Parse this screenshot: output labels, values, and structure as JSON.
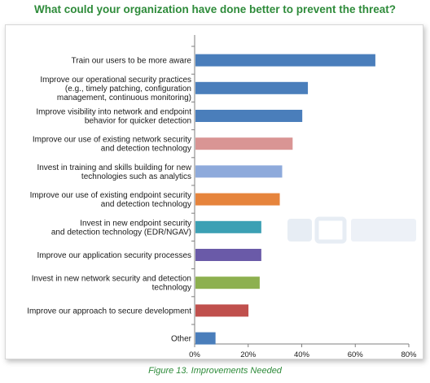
{
  "title": "What could your organization have done better to prevent the threat?",
  "caption": "Figure 13. Improvements Needed",
  "chart_data": {
    "type": "bar",
    "orientation": "horizontal",
    "categories": [
      [
        "Train our users to be more aware"
      ],
      [
        "Improve our operational security practices",
        "(e.g., timely patching, configuration",
        "management, continuous monitoring)"
      ],
      [
        "Improve visibility into network and endpoint",
        "behavior for quicker detection"
      ],
      [
        "Improve our use of existing network security",
        "and detection technology"
      ],
      [
        "Invest in training and skills building for new",
        "technologies such as analytics"
      ],
      [
        "Improve our use of existing endpoint security",
        "and detection technology"
      ],
      [
        "Invest in new endpoint security",
        "and detection technology (EDR/NGAV)"
      ],
      [
        "Improve our application security processes"
      ],
      [
        "Invest in new network security and detection",
        "technology"
      ],
      [
        "Improve our approach to secure development"
      ],
      [
        "Other"
      ]
    ],
    "values": [
      67.5,
      42.3,
      40.2,
      36.6,
      32.7,
      31.8,
      24.9,
      24.9,
      24.3,
      20.1,
      7.8
    ],
    "colors": [
      "#4a7ebb",
      "#4a7ebb",
      "#4a7ebb",
      "#d99594",
      "#8eaadb",
      "#e6843c",
      "#3ba0b4",
      "#6a5aa8",
      "#8db04f",
      "#c0504d",
      "#4a7ebb"
    ],
    "xlim": [
      0,
      80
    ],
    "xticks": [
      "0%",
      "20%",
      "40%",
      "60%",
      "80%"
    ],
    "grid": false
  }
}
